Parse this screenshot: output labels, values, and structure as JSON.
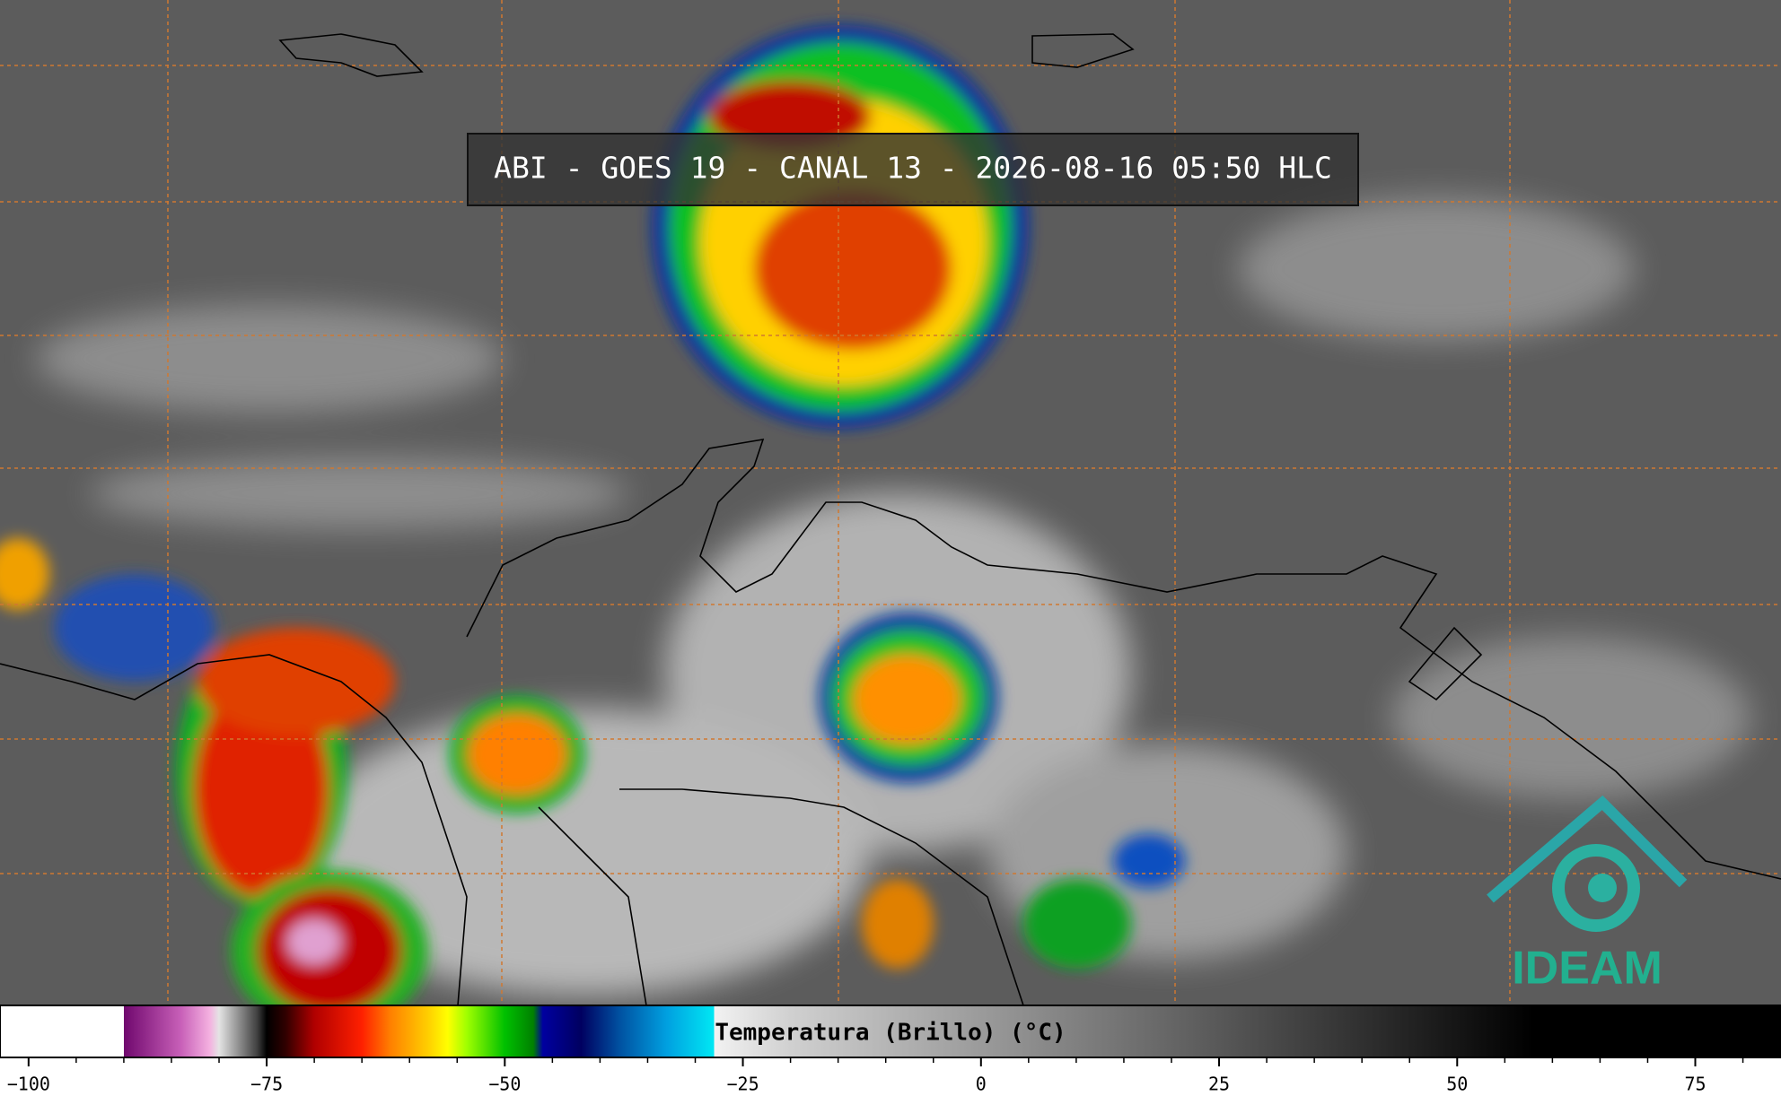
{
  "title": "ABI - GOES 19 - CANAL 13 - 2026-08-16 05:50 HLC",
  "logo": "IDEAM",
  "colorbar": {
    "label": "Temperatura (Brillo) (°C)",
    "xlim": [
      -103,
      84
    ],
    "ticks": [
      {
        "value": -100,
        "label": "−100"
      },
      {
        "value": -75,
        "label": "−75"
      },
      {
        "value": -50,
        "label": "−50"
      },
      {
        "value": -25,
        "label": "−25"
      },
      0,
      25,
      50,
      75
    ],
    "minor_ticks": [
      -100,
      -95,
      -90,
      -85,
      -80,
      -75,
      -70,
      -65,
      -60,
      -55,
      -50,
      -45,
      -40,
      -35,
      -30,
      -25,
      -20,
      -15,
      -10,
      -5,
      0,
      5,
      10,
      15,
      20,
      25,
      30,
      35,
      40,
      45,
      50,
      55,
      60,
      65,
      70,
      75,
      80
    ],
    "colormap": [
      [
        -103,
        "#ffffff"
      ],
      [
        -90,
        "#ffffff"
      ],
      [
        -90,
        "#70086e"
      ],
      [
        -84,
        "#c860b8"
      ],
      [
        -81,
        "#f4b0e0"
      ],
      [
        -80,
        "#e4e4e4"
      ],
      [
        -76,
        "#404040"
      ],
      [
        -75,
        "#000000"
      ],
      [
        -73,
        "#300000"
      ],
      [
        -70,
        "#b00000"
      ],
      [
        -65,
        "#ff2000"
      ],
      [
        -62,
        "#ff8000"
      ],
      [
        -58,
        "#ffd000"
      ],
      [
        -56,
        "#ffff00"
      ],
      [
        -54,
        "#a0ff00"
      ],
      [
        -50,
        "#00c000"
      ],
      [
        -47,
        "#008000"
      ],
      [
        -46,
        "#0000a0"
      ],
      [
        -42,
        "#000060"
      ],
      [
        -38,
        "#0050a0"
      ],
      [
        -33,
        "#00a0e0"
      ],
      [
        -28,
        "#00e8f4"
      ],
      [
        -28,
        "#f2f2f2"
      ],
      [
        -20,
        "#d0d0d0"
      ],
      [
        58,
        "#000000"
      ],
      [
        84,
        "#000000"
      ]
    ]
  }
}
